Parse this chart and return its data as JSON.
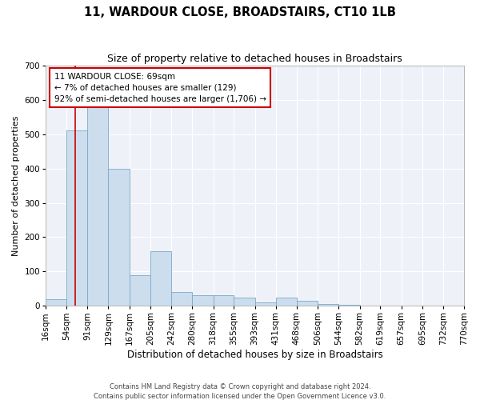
{
  "title": "11, WARDOUR CLOSE, BROADSTAIRS, CT10 1LB",
  "subtitle": "Size of property relative to detached houses in Broadstairs",
  "xlabel": "Distribution of detached houses by size in Broadstairs",
  "ylabel": "Number of detached properties",
  "bar_color": "#ccdded",
  "bar_edge_color": "#7aaac8",
  "background_color": "#eef2f8",
  "grid_color": "#ffffff",
  "bins": [
    16,
    54,
    91,
    129,
    167,
    205,
    242,
    280,
    318,
    355,
    393,
    431,
    468,
    506,
    544,
    582,
    619,
    657,
    695,
    732,
    770
  ],
  "bar_heights": [
    20,
    510,
    580,
    400,
    90,
    160,
    40,
    30,
    30,
    25,
    10,
    25,
    15,
    5,
    3,
    2,
    1,
    1,
    0,
    0
  ],
  "property_size": 69,
  "annotation_text": "11 WARDOUR CLOSE: 69sqm\n← 7% of detached houses are smaller (129)\n92% of semi-detached houses are larger (1,706) →",
  "annotation_box_color": "#ffffff",
  "annotation_border_color": "#cc0000",
  "red_line_color": "#cc0000",
  "ylim": [
    0,
    700
  ],
  "yticks": [
    0,
    100,
    200,
    300,
    400,
    500,
    600,
    700
  ],
  "tick_label_fontsize": 7.5,
  "title_fontsize": 10.5,
  "subtitle_fontsize": 9,
  "xlabel_fontsize": 8.5,
  "ylabel_fontsize": 8,
  "footer1": "Contains HM Land Registry data © Crown copyright and database right 2024.",
  "footer2": "Contains public sector information licensed under the Open Government Licence v3.0."
}
